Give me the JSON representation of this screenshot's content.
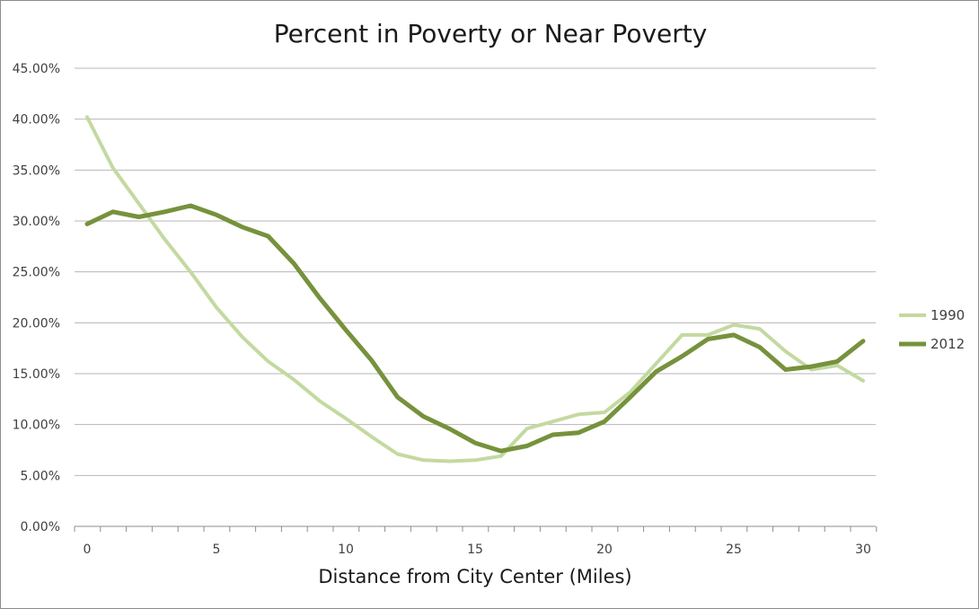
{
  "chart_data": {
    "type": "line",
    "title": "Percent in Poverty or Near Poverty",
    "xlabel": "Distance from City Center (Miles)",
    "ylabel": "",
    "xlim": [
      0,
      30
    ],
    "ylim": [
      0,
      45
    ],
    "yticks": [
      0,
      5,
      10,
      15,
      20,
      25,
      30,
      35,
      40,
      45
    ],
    "ytick_labels": [
      "0.00%",
      "5.00%",
      "10.00%",
      "15.00%",
      "20.00%",
      "25.00%",
      "30.00%",
      "35.00%",
      "40.00%",
      "45.00%"
    ],
    "xticks_labeled": [
      0,
      5,
      10,
      15,
      20,
      25,
      30
    ],
    "xtick_labels": [
      "0",
      "5",
      "10",
      "15",
      "20",
      "25",
      "30"
    ],
    "grid": "horizontal",
    "legend_position": "right",
    "x": [
      0,
      1,
      2,
      3,
      4,
      5,
      6,
      7,
      8,
      9,
      10,
      11,
      12,
      13,
      14,
      15,
      16,
      17,
      18,
      19,
      20,
      21,
      22,
      23,
      24,
      25,
      26,
      27,
      28,
      29,
      30
    ],
    "series": [
      {
        "name": "1990",
        "color": "#c4d9a0",
        "values": [
          40.2,
          35.2,
          31.7,
          28.2,
          25.0,
          21.5,
          18.6,
          16.2,
          14.4,
          12.3,
          10.6,
          8.8,
          7.1,
          6.5,
          6.4,
          6.5,
          6.9,
          9.6,
          10.3,
          11.0,
          11.2,
          13.2,
          16.0,
          18.8,
          18.8,
          19.8,
          19.4,
          17.2,
          15.4,
          15.8,
          14.3
        ]
      },
      {
        "name": "2012",
        "color": "#76923c",
        "values": [
          29.7,
          30.9,
          30.4,
          30.9,
          31.5,
          30.6,
          29.4,
          28.5,
          25.8,
          22.4,
          19.3,
          16.3,
          12.7,
          10.8,
          9.6,
          8.2,
          7.4,
          7.9,
          9.0,
          9.2,
          10.3,
          12.7,
          15.2,
          16.7,
          18.4,
          18.8,
          17.6,
          15.4,
          15.7,
          16.2,
          18.2
        ]
      }
    ]
  }
}
